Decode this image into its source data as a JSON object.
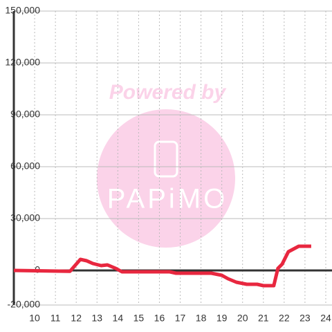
{
  "chart_data": {
    "type": "line",
    "x": [
      9,
      11.7,
      12.2,
      12.5,
      12.8,
      13.2,
      13.5,
      13.9,
      14.2,
      15,
      16.5,
      16.8,
      18,
      18.5,
      19,
      19.3,
      19.7,
      20.2,
      20.7,
      21,
      21.5,
      21.7,
      21.9,
      22.2,
      22.7,
      23.3
    ],
    "series": [
      {
        "color": "#e8273f",
        "values": [
          0,
          -500,
          6400,
          5600,
          4000,
          2800,
          3200,
          1200,
          -800,
          -800,
          -800,
          -1600,
          -1600,
          -1600,
          -2800,
          -4800,
          -6800,
          -8000,
          -8000,
          -8800,
          -8800,
          1200,
          3600,
          10800,
          14000,
          14000
        ]
      }
    ],
    "xlim": [
      9,
      24.3
    ],
    "xticks": [
      10,
      11,
      12,
      13,
      14,
      15,
      16,
      17,
      18,
      19,
      20,
      21,
      22,
      23,
      24
    ],
    "ylim": [
      -20000,
      150000
    ],
    "yticks": [
      {
        "value": -20000,
        "label": "-20,000"
      },
      0,
      {
        "value": 30000,
        "label": "30,000"
      },
      {
        "value": 60000,
        "label": "60,000"
      },
      {
        "value": 90000,
        "label": "90,000"
      },
      {
        "value": 120000,
        "label": "120,000"
      },
      {
        "value": 150000,
        "label": "150,000"
      }
    ],
    "grid": true
  },
  "watermark": {
    "text": "Powered by",
    "logo": "PAPiMO"
  }
}
